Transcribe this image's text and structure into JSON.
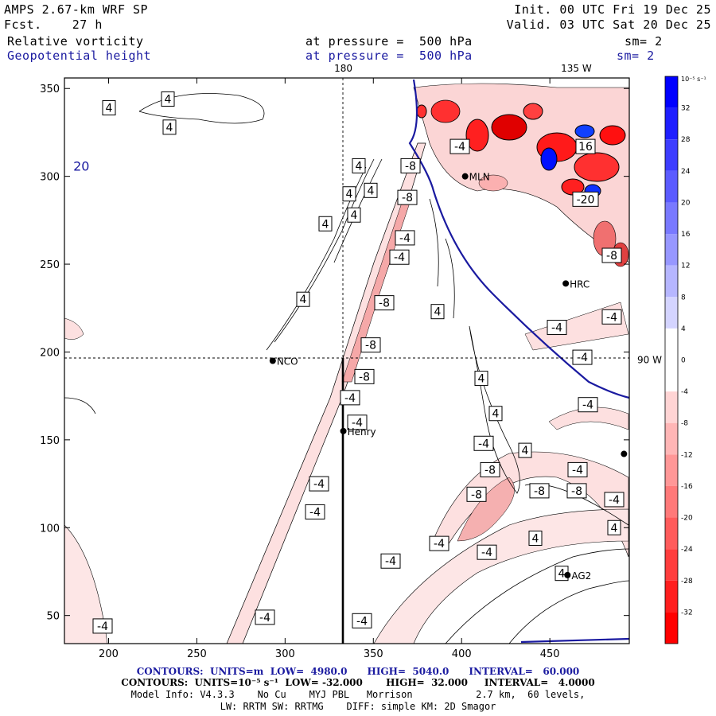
{
  "header": {
    "model": "AMPS 2.67-km WRF SP",
    "fcst_label": "Fcst.",
    "fcst_value": "27 h",
    "init": "Init. 00 UTC Fri 19 Dec 25",
    "valid": "Valid. 03 UTC Sat 20 Dec 25",
    "field1_name": "Relative vorticity",
    "field1_level": "at pressure =  500 hPa",
    "field1_sm": "sm= 2",
    "field2_name": "Geopotential height",
    "field2_level": "at pressure =  500 hPa",
    "field2_sm": "sm= 2"
  },
  "colors": {
    "height_line": "#1a1aa0",
    "pos_bar": "#0000ff",
    "neg_bar": "#ff0000"
  },
  "chart_data": {
    "type": "contour-map",
    "xlim": [
      175,
      495
    ],
    "ylim": [
      34,
      356
    ],
    "x_ticks": [
      200,
      250,
      300,
      350,
      400,
      450
    ],
    "y_ticks": [
      50,
      100,
      150,
      200,
      250,
      300,
      350
    ],
    "meridian_labels": [
      {
        "x": 333,
        "text": "180"
      },
      {
        "x": 465,
        "text": "135 W"
      }
    ],
    "parallel_label": {
      "y": 196,
      "text": "90 W"
    },
    "stations": [
      {
        "name": "NCO",
        "x": 293,
        "y": 195
      },
      {
        "name": "Henry",
        "x": 333,
        "y": 155
      },
      {
        "name": "HRC",
        "x": 459,
        "y": 239
      },
      {
        "name": "MLN",
        "x": 402,
        "y": 300
      },
      {
        "name": "AG2",
        "x": 460,
        "y": 73
      },
      {
        "name": "",
        "x": 492,
        "y": 142
      }
    ],
    "height_contour_label": {
      "x": 180,
      "y": 306,
      "text": "20"
    },
    "vorticity_labels": [
      {
        "x": 211,
        "y": 344,
        "t": "4"
      },
      {
        "x": 137,
        "y": 339,
        "t": "4"
      },
      {
        "x": 213,
        "y": 328,
        "t": "4"
      },
      {
        "x": 451,
        "y": 306,
        "t": "4"
      },
      {
        "x": 439,
        "y": 290,
        "t": "4"
      },
      {
        "x": 466,
        "y": 292,
        "t": "4"
      },
      {
        "x": 445,
        "y": 278,
        "t": "4"
      },
      {
        "x": 409,
        "y": 273,
        "t": "4"
      },
      {
        "x": 381,
        "y": 230,
        "t": "4"
      },
      {
        "x": 550,
        "y": 223,
        "t": "4"
      },
      {
        "x": 605,
        "y": 185,
        "t": "4"
      },
      {
        "x": 623,
        "y": 165,
        "t": "4"
      },
      {
        "x": 660,
        "y": 144,
        "t": "4"
      },
      {
        "x": 673,
        "y": 94,
        "t": "4"
      },
      {
        "x": 772,
        "y": 100,
        "t": "4"
      },
      {
        "x": 706,
        "y": 74,
        "t": "4"
      },
      {
        "x": 516,
        "y": 306,
        "t": "-8"
      },
      {
        "x": 512,
        "y": 288,
        "t": "-8"
      },
      {
        "x": 509,
        "y": 265,
        "t": "-4"
      },
      {
        "x": 502,
        "y": 254,
        "t": "-4"
      },
      {
        "x": 483,
        "y": 228,
        "t": "-8"
      },
      {
        "x": 466,
        "y": 204,
        "t": "-8"
      },
      {
        "x": 458,
        "y": 186,
        "t": "-8"
      },
      {
        "x": 440,
        "y": 174,
        "t": "-4"
      },
      {
        "x": 449,
        "y": 160,
        "t": "-4"
      },
      {
        "x": 401,
        "y": 125,
        "t": "-4"
      },
      {
        "x": 396,
        "y": 109,
        "t": "-4"
      },
      {
        "x": 333,
        "y": 49,
        "t": "-4"
      },
      {
        "x": 455,
        "y": 47,
        "t": "-4"
      },
      {
        "x": 129,
        "y": 44,
        "t": "-4"
      },
      {
        "x": 491,
        "y": 81,
        "t": "-4"
      },
      {
        "x": 552,
        "y": 91,
        "t": "-4"
      },
      {
        "x": 612,
        "y": 86,
        "t": "-4"
      },
      {
        "x": 599,
        "y": 119,
        "t": "-8"
      },
      {
        "x": 678,
        "y": 121,
        "t": "-8"
      },
      {
        "x": 725,
        "y": 121,
        "t": "-8"
      },
      {
        "x": 616,
        "y": 133,
        "t": "-8"
      },
      {
        "x": 608,
        "y": 148,
        "t": "-4"
      },
      {
        "x": 726,
        "y": 133,
        "t": "-4"
      },
      {
        "x": 772,
        "y": 116,
        "t": "-4"
      },
      {
        "x": 739,
        "y": 170,
        "t": "-4"
      },
      {
        "x": 732,
        "y": 197,
        "t": "-4"
      },
      {
        "x": 700,
        "y": 214,
        "t": "-4"
      },
      {
        "x": 769,
        "y": 220,
        "t": "-4"
      },
      {
        "x": 769,
        "y": 255,
        "t": "-8"
      },
      {
        "x": 578,
        "y": 317,
        "t": "-4"
      },
      {
        "x": 736,
        "y": 317,
        "t": "16"
      },
      {
        "x": 736,
        "y": 287,
        "t": "-20"
      }
    ],
    "colorbar": {
      "units": "10⁻⁵ s⁻¹",
      "labels": [
        "32",
        "28",
        "24",
        "20",
        "16",
        "12",
        "8",
        "4",
        "0",
        "-4",
        "-8",
        "-12",
        "-16",
        "-20",
        "-24",
        "-28",
        "-32"
      ]
    },
    "contours_height": {
      "text": "CONTOURS:  UNITS=m  LOW=  4980.0      HIGH=  5040.0      INTERVAL=   60.000"
    },
    "contours_vort": {
      "text": "CONTOURS:  UNITS=10⁻⁵ s⁻¹  LOW= -32.000       HIGH=  32.000     INTERVAL=   4.0000"
    }
  },
  "footer": {
    "model_info": "Model Info: V4.3.3    No Cu    MYJ PBL   Morrison           2.7 km,  60 levels,",
    "model_info2": "LW: RRTM SW: RRTMG    DIFF: simple KM: 2D Smagor"
  }
}
